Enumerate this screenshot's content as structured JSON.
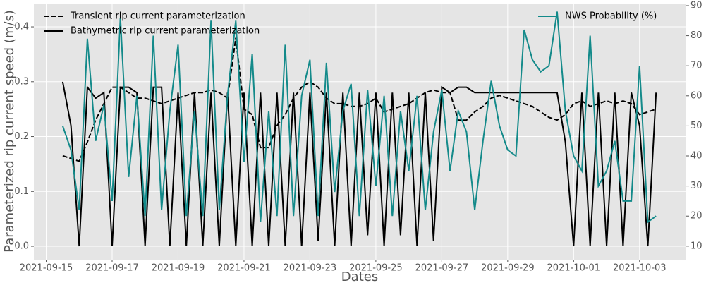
{
  "chart_data": {
    "type": "line",
    "xlabel": "Dates",
    "ylabel": "Parameterized rip current speed (m/s)",
    "x": [
      "2021-09-15T12:00",
      "2021-09-15T18:00",
      "2021-09-16T00:00",
      "2021-09-16T06:00",
      "2021-09-16T12:00",
      "2021-09-16T18:00",
      "2021-09-17T00:00",
      "2021-09-17T06:00",
      "2021-09-17T12:00",
      "2021-09-17T18:00",
      "2021-09-18T00:00",
      "2021-09-18T06:00",
      "2021-09-18T12:00",
      "2021-09-18T18:00",
      "2021-09-19T00:00",
      "2021-09-19T06:00",
      "2021-09-19T12:00",
      "2021-09-19T18:00",
      "2021-09-20T00:00",
      "2021-09-20T06:00",
      "2021-09-20T12:00",
      "2021-09-20T18:00",
      "2021-09-21T00:00",
      "2021-09-21T06:00",
      "2021-09-21T12:00",
      "2021-09-21T18:00",
      "2021-09-22T00:00",
      "2021-09-22T06:00",
      "2021-09-22T12:00",
      "2021-09-22T18:00",
      "2021-09-23T00:00",
      "2021-09-23T06:00",
      "2021-09-23T12:00",
      "2021-09-23T18:00",
      "2021-09-24T00:00",
      "2021-09-24T06:00",
      "2021-09-24T12:00",
      "2021-09-24T18:00",
      "2021-09-25T00:00",
      "2021-09-25T06:00",
      "2021-09-25T12:00",
      "2021-09-25T18:00",
      "2021-09-26T00:00",
      "2021-09-26T06:00",
      "2021-09-26T12:00",
      "2021-09-26T18:00",
      "2021-09-27T00:00",
      "2021-09-27T06:00",
      "2021-09-27T12:00",
      "2021-09-27T18:00",
      "2021-09-28T00:00",
      "2021-09-28T06:00",
      "2021-09-28T12:00",
      "2021-09-28T18:00",
      "2021-09-29T00:00",
      "2021-09-29T06:00",
      "2021-09-29T12:00",
      "2021-09-29T18:00",
      "2021-09-30T00:00",
      "2021-09-30T06:00",
      "2021-09-30T12:00",
      "2021-09-30T18:00",
      "2021-10-01T00:00",
      "2021-10-01T06:00",
      "2021-10-01T12:00",
      "2021-10-01T18:00",
      "2021-10-02T00:00",
      "2021-10-02T06:00",
      "2021-10-02T12:00",
      "2021-10-02T18:00",
      "2021-10-03T00:00",
      "2021-10-03T06:00",
      "2021-10-03T12:00"
    ],
    "series": [
      {
        "name": "Transient rip current parameterization",
        "color": "#000000",
        "linestyle": "dashed",
        "values": [
          0.165,
          0.16,
          0.155,
          0.19,
          0.23,
          0.26,
          0.29,
          0.29,
          0.28,
          0.27,
          0.27,
          0.265,
          0.26,
          0.265,
          0.27,
          0.275,
          0.28,
          0.28,
          0.285,
          0.28,
          0.27,
          0.38,
          0.25,
          0.24,
          0.18,
          0.18,
          0.22,
          0.24,
          0.27,
          0.29,
          0.3,
          0.29,
          0.27,
          0.26,
          0.26,
          0.255,
          0.255,
          0.26,
          0.27,
          0.245,
          0.25,
          0.255,
          0.26,
          0.27,
          0.28,
          0.285,
          0.28,
          0.28,
          0.23,
          0.23,
          0.245,
          0.255,
          0.27,
          0.275,
          0.27,
          0.265,
          0.26,
          0.255,
          0.245,
          0.235,
          0.23,
          0.24,
          0.26,
          0.265,
          0.255,
          0.26,
          0.265,
          0.26,
          0.265,
          0.26,
          0.24,
          0.245,
          0.25
        ]
      },
      {
        "name": "Bathymetric rip current parameterization",
        "color": "#000000",
        "linestyle": "solid",
        "values": [
          0.3,
          0.22,
          0.0,
          0.29,
          0.27,
          0.28,
          0.0,
          0.29,
          0.29,
          0.28,
          0.0,
          0.29,
          0.29,
          0.0,
          0.28,
          0.0,
          0.28,
          0.0,
          0.28,
          0.0,
          0.28,
          0.0,
          0.28,
          0.0,
          0.28,
          0.0,
          0.28,
          0.0,
          0.28,
          0.0,
          0.28,
          0.01,
          0.28,
          0.0,
          0.28,
          0.0,
          0.28,
          0.02,
          0.28,
          0.0,
          0.28,
          0.02,
          0.28,
          0.0,
          0.28,
          0.01,
          0.29,
          0.28,
          0.29,
          0.29,
          0.28,
          0.28,
          0.28,
          0.28,
          0.28,
          0.28,
          0.28,
          0.28,
          0.28,
          0.28,
          0.28,
          0.19,
          0.0,
          0.28,
          0.0,
          0.28,
          0.0,
          0.28,
          0.0,
          0.28,
          0.22,
          0.0,
          0.28
        ]
      },
      {
        "name": "NWS Probability (%)",
        "color": "#138a8a",
        "linestyle": "solid",
        "axis": "y2",
        "values": [
          50,
          42,
          22,
          79,
          45,
          57,
          25,
          86,
          33,
          60,
          20,
          80,
          22,
          55,
          77,
          20,
          55,
          20,
          85,
          22,
          60,
          85,
          38,
          74,
          18,
          55,
          20,
          77,
          20,
          60,
          72,
          20,
          71,
          28,
          55,
          64,
          20,
          62,
          30,
          60,
          20,
          55,
          35,
          60,
          22,
          48,
          62,
          35,
          55,
          48,
          22,
          45,
          65,
          50,
          42,
          40,
          82,
          72,
          68,
          70,
          88,
          55,
          40,
          35,
          80,
          30,
          35,
          45,
          25,
          25,
          70,
          18,
          20
        ]
      }
    ],
    "xlim": [
      "2021-09-14T15:00",
      "2021-10-04T10:00"
    ],
    "xticks": [
      "2021-09-15",
      "2021-09-17",
      "2021-09-19",
      "2021-09-21",
      "2021-09-23",
      "2021-09-25",
      "2021-09-27",
      "2021-09-29",
      "2021-10-01",
      "2021-10-03"
    ],
    "ylim": [
      -0.0244,
      0.4425
    ],
    "yticks": [
      {
        "value": 0,
        "label": "0.0"
      },
      {
        "value": 0.1,
        "label": "0.1"
      },
      {
        "value": 0.2,
        "label": "0.2"
      },
      {
        "value": 0.3,
        "label": "0.3"
      },
      {
        "value": 0.4,
        "label": "0.4"
      }
    ],
    "y2lim": [
      5.5,
      90.7
    ],
    "y2ticks": [
      10,
      20,
      30,
      40,
      50,
      60,
      70,
      80,
      90
    ],
    "grid": true,
    "legend": "upper left",
    "legend2": "upper right"
  }
}
